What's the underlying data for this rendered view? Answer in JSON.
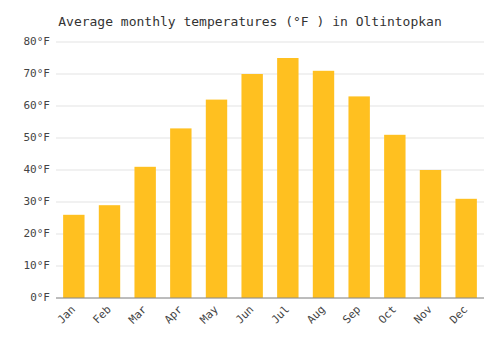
{
  "chart_data": {
    "type": "bar",
    "title": "Average monthly temperatures (°F ) in Oltintopkan",
    "categories": [
      "Jan",
      "Feb",
      "Mar",
      "Apr",
      "May",
      "Jun",
      "Jul",
      "Aug",
      "Sep",
      "Oct",
      "Nov",
      "Dec"
    ],
    "values": [
      26,
      29,
      41,
      53,
      62,
      70,
      75,
      71,
      63,
      51,
      40,
      31
    ],
    "color": "#FFC020",
    "ylim": [
      0,
      80
    ],
    "yticks": [
      {
        "value": 0,
        "label": "0°F"
      },
      {
        "value": 10,
        "label": "10°F"
      },
      {
        "value": 20,
        "label": "20°F"
      },
      {
        "value": 30,
        "label": "30°F"
      },
      {
        "value": 40,
        "label": "40°F"
      },
      {
        "value": 50,
        "label": "50°F"
      },
      {
        "value": 60,
        "label": "60°F"
      },
      {
        "value": 70,
        "label": "70°F"
      },
      {
        "value": 80,
        "label": "80°F"
      }
    ],
    "grid": true
  }
}
